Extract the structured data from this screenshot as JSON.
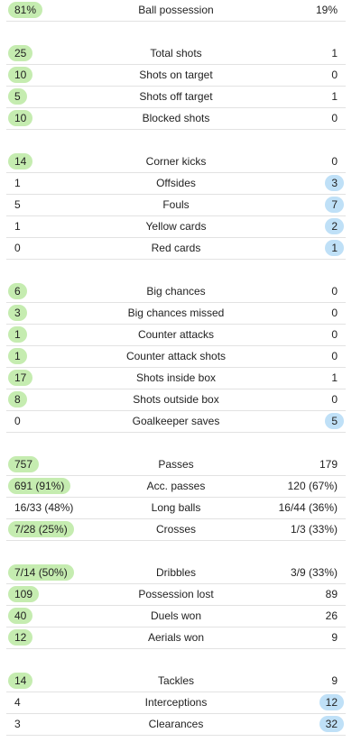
{
  "groups": [
    {
      "rows": [
        {
          "label": "Ball possession",
          "home": "81%",
          "away": "19%",
          "winner": "home"
        }
      ]
    },
    {
      "rows": [
        {
          "label": "Total shots",
          "home": "25",
          "away": "1",
          "winner": "home"
        },
        {
          "label": "Shots on target",
          "home": "10",
          "away": "0",
          "winner": "home"
        },
        {
          "label": "Shots off target",
          "home": "5",
          "away": "1",
          "winner": "home"
        },
        {
          "label": "Blocked shots",
          "home": "10",
          "away": "0",
          "winner": "home"
        }
      ]
    },
    {
      "rows": [
        {
          "label": "Corner kicks",
          "home": "14",
          "away": "0",
          "winner": "home"
        },
        {
          "label": "Offsides",
          "home": "1",
          "away": "3",
          "winner": "away"
        },
        {
          "label": "Fouls",
          "home": "5",
          "away": "7",
          "winner": "away"
        },
        {
          "label": "Yellow cards",
          "home": "1",
          "away": "2",
          "winner": "away"
        },
        {
          "label": "Red cards",
          "home": "0",
          "away": "1",
          "winner": "away"
        }
      ]
    },
    {
      "rows": [
        {
          "label": "Big chances",
          "home": "6",
          "away": "0",
          "winner": "home"
        },
        {
          "label": "Big chances missed",
          "home": "3",
          "away": "0",
          "winner": "home"
        },
        {
          "label": "Counter attacks",
          "home": "1",
          "away": "0",
          "winner": "home"
        },
        {
          "label": "Counter attack shots",
          "home": "1",
          "away": "0",
          "winner": "home"
        },
        {
          "label": "Shots inside box",
          "home": "17",
          "away": "1",
          "winner": "home"
        },
        {
          "label": "Shots outside box",
          "home": "8",
          "away": "0",
          "winner": "home"
        },
        {
          "label": "Goalkeeper saves",
          "home": "0",
          "away": "5",
          "winner": "away"
        }
      ]
    },
    {
      "rows": [
        {
          "label": "Passes",
          "home": "757",
          "away": "179",
          "winner": "home"
        },
        {
          "label": "Acc. passes",
          "home": "691 (91%)",
          "away": "120 (67%)",
          "winner": "home"
        },
        {
          "label": "Long balls",
          "home": "16/33 (48%)",
          "away": "16/44 (36%)",
          "winner": "none"
        },
        {
          "label": "Crosses",
          "home": "7/28 (25%)",
          "away": "1/3 (33%)",
          "winner": "home"
        }
      ]
    },
    {
      "rows": [
        {
          "label": "Dribbles",
          "home": "7/14 (50%)",
          "away": "3/9 (33%)",
          "winner": "home"
        },
        {
          "label": "Possession lost",
          "home": "109",
          "away": "89",
          "winner": "home"
        },
        {
          "label": "Duels won",
          "home": "40",
          "away": "26",
          "winner": "home"
        },
        {
          "label": "Aerials won",
          "home": "12",
          "away": "9",
          "winner": "home"
        }
      ]
    },
    {
      "rows": [
        {
          "label": "Tackles",
          "home": "14",
          "away": "9",
          "winner": "home"
        },
        {
          "label": "Interceptions",
          "home": "4",
          "away": "12",
          "winner": "away"
        },
        {
          "label": "Clearances",
          "home": "3",
          "away": "32",
          "winner": "away"
        }
      ]
    }
  ],
  "colors": {
    "home_highlight": "#c5ecb0",
    "away_highlight": "#bfe0f7",
    "divider": "#e2e2e2"
  }
}
